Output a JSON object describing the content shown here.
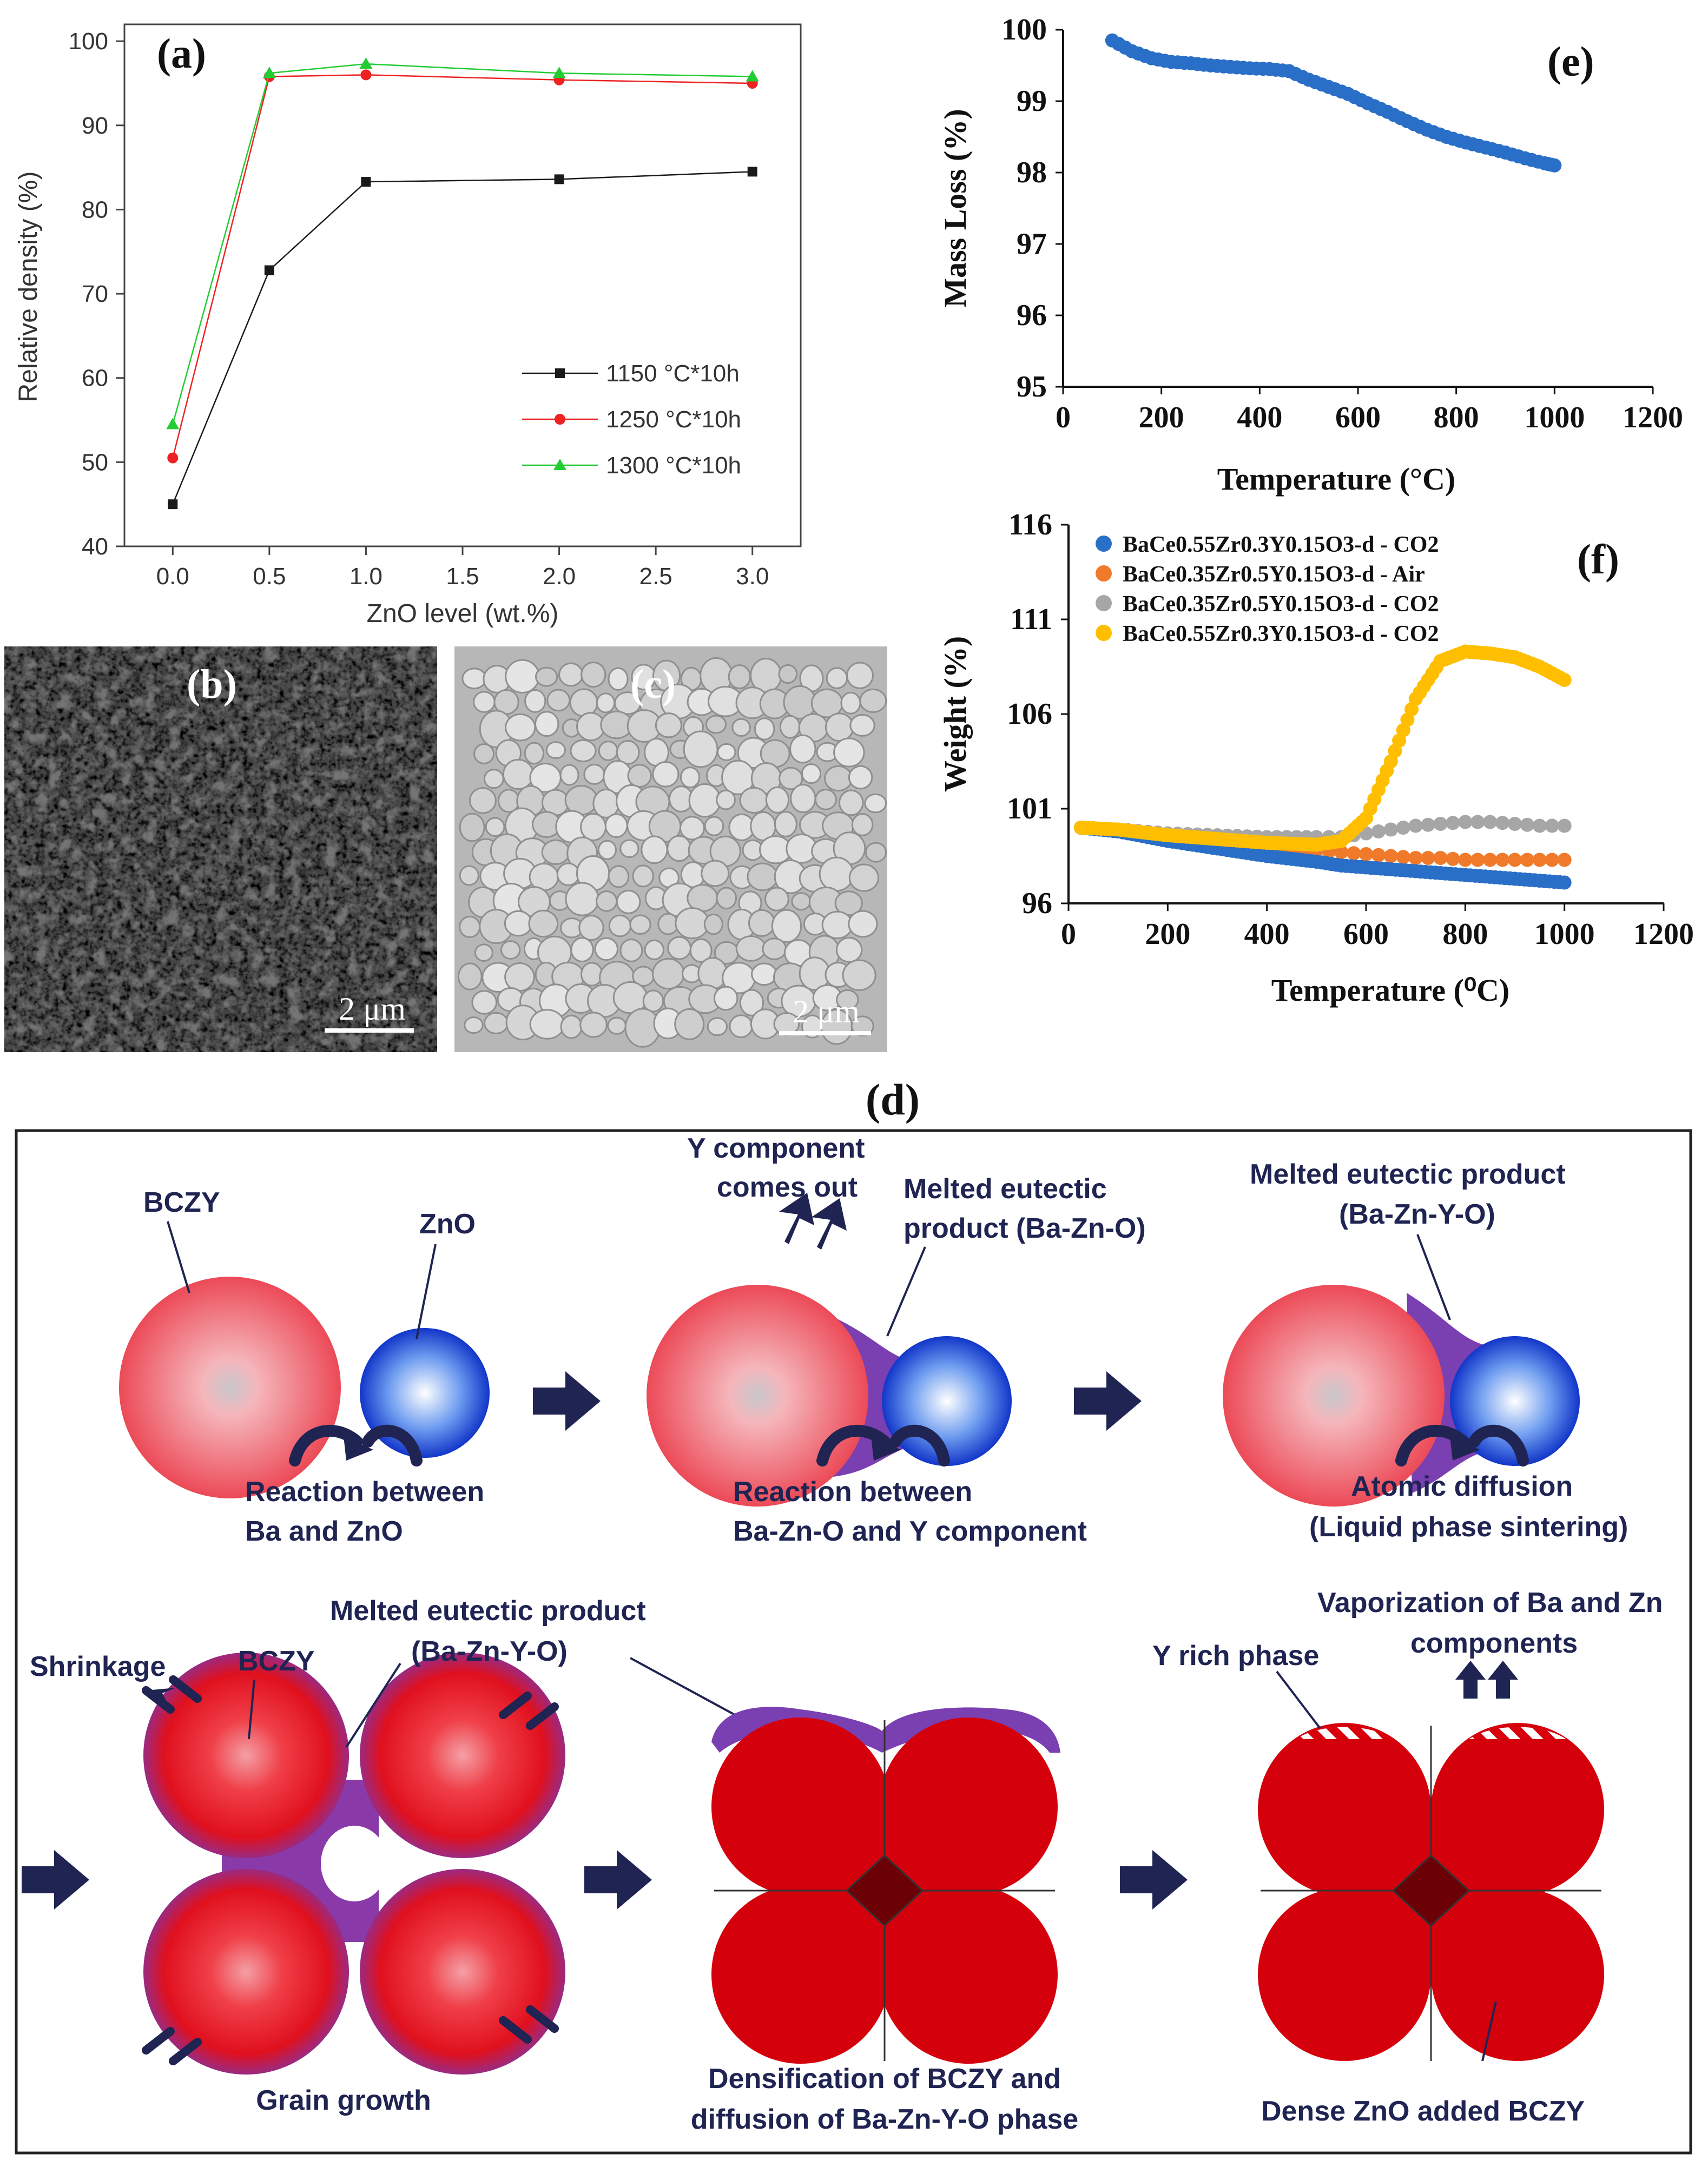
{
  "chart_data": [
    {
      "panel": "(a)",
      "type": "line",
      "x": [
        0.0,
        0.5,
        1.0,
        2.0,
        3.0
      ],
      "series": [
        {
          "name": "1150 °C*10h",
          "values": [
            45.0,
            72.8,
            83.3,
            83.6,
            84.5
          ],
          "color": "#1a1a1a",
          "marker": "square"
        },
        {
          "name": "1250 °C*10h",
          "values": [
            50.5,
            95.8,
            96.0,
            95.4,
            95.0
          ],
          "color": "#ee2222",
          "marker": "circle"
        },
        {
          "name": "1300 °C*10h",
          "values": [
            54.5,
            96.2,
            97.3,
            96.2,
            95.8
          ],
          "color": "#22cc33",
          "marker": "triangle"
        }
      ],
      "xlabel": "ZnO level (wt.%)",
      "ylabel": "Relative density (%)",
      "xlim": [
        -0.25,
        3.25
      ],
      "ylim": [
        40,
        102
      ],
      "xticks": [
        "0.0",
        "0.5",
        "1.0",
        "1.5",
        "2.0",
        "2.5",
        "3.0"
      ],
      "yticks": [
        "40",
        "50",
        "60",
        "70",
        "80",
        "90",
        "100"
      ],
      "legend": "bottom-right"
    },
    {
      "panel": "(e)",
      "type": "scatter",
      "x": [
        100,
        140,
        180,
        220,
        260,
        300,
        340,
        380,
        420,
        460,
        500,
        540,
        580,
        620,
        660,
        700,
        740,
        780,
        820,
        860,
        900,
        940,
        980,
        1000
      ],
      "y": [
        99.85,
        99.7,
        99.6,
        99.55,
        99.53,
        99.5,
        99.48,
        99.46,
        99.45,
        99.42,
        99.3,
        99.2,
        99.1,
        98.97,
        98.85,
        98.72,
        98.6,
        98.5,
        98.42,
        98.35,
        98.28,
        98.2,
        98.13,
        98.1
      ],
      "color": "#2a6fc7",
      "xlabel": "Temperature (°C)",
      "ylabel": "Mass Loss (%)",
      "xlim": [
        0,
        1200
      ],
      "ylim": [
        95,
        100
      ],
      "xticks": [
        "0",
        "200",
        "400",
        "600",
        "800",
        "1000",
        "1200"
      ],
      "yticks": [
        "95",
        "96",
        "97",
        "98",
        "99",
        "100"
      ]
    },
    {
      "panel": "(f)",
      "type": "scatter",
      "x": [
        25,
        100,
        200,
        300,
        400,
        500,
        550,
        600,
        650,
        700,
        750,
        800,
        850,
        900,
        950,
        1000
      ],
      "series": [
        {
          "name": "BaCe0.55Zr0.3Y0.15O3-d - CO2",
          "color": "#2a6fc7",
          "values": [
            100.0,
            99.8,
            99.3,
            98.9,
            98.5,
            98.2,
            98.0,
            97.9,
            97.8,
            97.7,
            97.6,
            97.5,
            97.4,
            97.3,
            97.2,
            97.1
          ]
        },
        {
          "name": "BaCe0.35Zr0.5Y0.15O3-d - Air",
          "color": "#f07a2a",
          "values": [
            100.0,
            99.9,
            99.6,
            99.3,
            99.0,
            98.8,
            98.7,
            98.6,
            98.5,
            98.4,
            98.4,
            98.3,
            98.3,
            98.3,
            98.3,
            98.3
          ]
        },
        {
          "name": "BaCe0.35Zr0.5Y0.15O3-d - CO2",
          "color": "#a6a6a6",
          "values": [
            100.0,
            99.9,
            99.7,
            99.6,
            99.5,
            99.5,
            99.5,
            99.7,
            99.9,
            100.1,
            100.2,
            100.3,
            100.3,
            100.2,
            100.1,
            100.1
          ]
        },
        {
          "name": "BaCe0.55Zr0.3Y0.15O3-d - CO2",
          "color": "#ffbf00",
          "values": [
            100.0,
            99.9,
            99.6,
            99.4,
            99.2,
            99.1,
            99.3,
            100.5,
            103.5,
            106.8,
            108.8,
            109.3,
            109.2,
            109.0,
            108.5,
            107.8
          ]
        }
      ],
      "xlabel": "Temperature (⁰C)",
      "ylabel": "Weight (%)",
      "xlim": [
        0,
        1200
      ],
      "ylim": [
        96,
        116
      ],
      "xticks": [
        "0",
        "200",
        "400",
        "600",
        "800",
        "1000",
        "1200"
      ],
      "yticks": [
        "96",
        "101",
        "106",
        "111",
        "116"
      ],
      "legend": "top-left"
    }
  ],
  "panels": {
    "a": "(a)",
    "b": "(b)",
    "c": "(c)",
    "d": "(d)",
    "e": "(e)",
    "f": "(f)"
  },
  "sem": {
    "scale_b": "2 μm",
    "scale_c": "2 μm"
  },
  "diagram": {
    "row1": {
      "bczy": "BCZY",
      "zno": "ZnO",
      "step1_caption_l1": "Reaction between",
      "step1_caption_l2": "Ba and ZnO",
      "y_out_l1": "Y  component",
      "y_out_l2": "comes out",
      "melt1_l1": "Melted eutectic",
      "melt1_l2": "product (Ba-Zn-O)",
      "step2_caption_l1": "Reaction between",
      "step2_caption_l2": "Ba-Zn-O and Y component",
      "melt2_l1": "Melted eutectic product",
      "melt2_l2": "(Ba-Zn-Y-O)",
      "step3_caption_l1": "Atomic diffusion",
      "step3_caption_l2": "(Liquid phase sintering)"
    },
    "row2": {
      "shrinkage": "Shrinkage",
      "bczy": "BCZY",
      "melt_l1": "Melted eutectic product",
      "melt_l2": "(Ba-Zn-Y-O)",
      "grain_growth": "Grain growth",
      "dens_l1": "Densification of BCZY and",
      "dens_l2": "diffusion of Ba-Zn-Y-O phase",
      "y_rich": "Y rich phase",
      "vapor_l1": "Vaporization of Ba and Zn",
      "vapor_l2": "components",
      "dense": "Dense ZnO added BCZY"
    }
  }
}
